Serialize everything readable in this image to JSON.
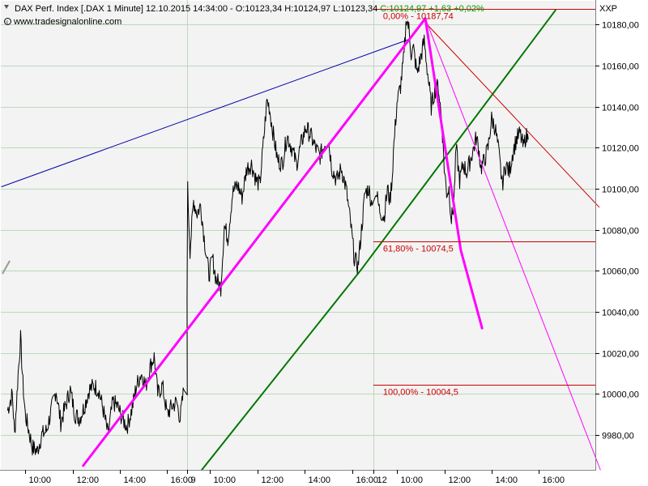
{
  "header": {
    "instrument": "DAX Perf. Index [.DAX",
    "interval": "1 Minute]",
    "datetime": "12.10.2015 14:34:00",
    "ohl": "- O:10123,34 H:10124,97 L:10123,34",
    "close_change": "C:10124,97 +1,63 +0,02%",
    "source": "www.tradesignalonline.com",
    "axis_code": "XXP"
  },
  "colors": {
    "background": "#f3f3f3",
    "grid": "#bcd8bc",
    "price": "#000000",
    "pink": "#ff00ff",
    "green": "#007700",
    "blue": "#0000aa",
    "fib": "#cc0000",
    "close_change": "#009900"
  },
  "chart_data": {
    "type": "line",
    "title": "",
    "xlabel": "",
    "ylabel": "",
    "ylim": [
      9963,
      10192
    ],
    "x_ticks": [
      {
        "label": "10:00",
        "x": 1
      },
      {
        "label": "12:00",
        "x": 3
      },
      {
        "label": "14:00",
        "x": 5
      },
      {
        "label": "16:00",
        "x": 7
      },
      {
        "label": "9",
        "x": 7.85
      },
      {
        "label": "10:00",
        "x": 8.85
      },
      {
        "label": "12:00",
        "x": 10.85
      },
      {
        "label": "14:00",
        "x": 12.85
      },
      {
        "label": "16:00",
        "x": 14.85
      },
      {
        "label": "12",
        "x": 15.75
      },
      {
        "label": "10:00",
        "x": 16.75
      },
      {
        "label": "12:00",
        "x": 18.75
      },
      {
        "label": "14:00",
        "x": 20.75
      },
      {
        "label": "16:00",
        "x": 22.75
      }
    ],
    "y_ticks": [
      9980,
      10000,
      10020,
      10040,
      10060,
      10080,
      10100,
      10120,
      10140,
      10160,
      10180
    ],
    "y_tick_labels": [
      "9980,00",
      "10000,00",
      "10020,00",
      "10040,00",
      "10060,00",
      "10080,00",
      "10100,00",
      "10120,00",
      "10140,00",
      "10160,00",
      "10180,00"
    ],
    "series": [
      {
        "values": [
          [
            0.25,
            9992
          ],
          [
            0.45,
            10000
          ],
          [
            0.55,
            9980
          ],
          [
            0.7,
            10010
          ],
          [
            0.8,
            10027
          ],
          [
            0.9,
            10005
          ],
          [
            1.0,
            9990
          ],
          [
            1.15,
            9982
          ],
          [
            1.3,
            9974
          ],
          [
            1.5,
            9972
          ],
          [
            1.7,
            9980
          ],
          [
            1.9,
            9982
          ],
          [
            2.1,
            9992
          ],
          [
            2.3,
            10002
          ],
          [
            2.5,
            9986
          ],
          [
            2.7,
            9994
          ],
          [
            2.9,
            10002
          ],
          [
            3.1,
            9990
          ],
          [
            3.3,
            9988
          ],
          [
            3.5,
            9994
          ],
          [
            3.7,
            10002
          ],
          [
            3.9,
            10004
          ],
          [
            4.1,
            10002
          ],
          [
            4.3,
            9992
          ],
          [
            4.5,
            9980
          ],
          [
            4.7,
            9996
          ],
          [
            4.9,
            9994
          ],
          [
            5.1,
            9988
          ],
          [
            5.3,
            9984
          ],
          [
            5.5,
            9992
          ],
          [
            5.7,
            10004
          ],
          [
            5.9,
            10010
          ],
          [
            6.1,
            10004
          ],
          [
            6.3,
            10014
          ],
          [
            6.45,
            10018
          ],
          [
            6.6,
            10000
          ],
          [
            6.8,
            10004
          ],
          [
            7.0,
            9990
          ],
          [
            7.2,
            9994
          ],
          [
            7.4,
            9996
          ],
          [
            7.55,
            9988
          ],
          [
            7.7,
            10002
          ],
          [
            7.85,
            10000
          ],
          [
            7.9,
            10100
          ],
          [
            8.0,
            10070
          ],
          [
            8.15,
            10094
          ],
          [
            8.3,
            10088
          ],
          [
            8.45,
            10092
          ],
          [
            8.6,
            10076
          ],
          [
            8.8,
            10058
          ],
          [
            8.95,
            10066
          ],
          [
            9.1,
            10056
          ],
          [
            9.3,
            10052
          ],
          [
            9.45,
            10082
          ],
          [
            9.6,
            10076
          ],
          [
            9.8,
            10098
          ],
          [
            10.0,
            10102
          ],
          [
            10.2,
            10096
          ],
          [
            10.4,
            10110
          ],
          [
            10.6,
            10112
          ],
          [
            10.8,
            10104
          ],
          [
            10.95,
            10102
          ],
          [
            11.1,
            10122
          ],
          [
            11.25,
            10143
          ],
          [
            11.35,
            10140
          ],
          [
            11.5,
            10128
          ],
          [
            11.7,
            10114
          ],
          [
            11.9,
            10112
          ],
          [
            12.1,
            10126
          ],
          [
            12.3,
            10120
          ],
          [
            12.5,
            10112
          ],
          [
            12.7,
            10122
          ],
          [
            12.9,
            10130
          ],
          [
            13.1,
            10126
          ],
          [
            13.3,
            10120
          ],
          [
            13.5,
            10116
          ],
          [
            13.7,
            10122
          ],
          [
            13.85,
            10124
          ],
          [
            14.0,
            10110
          ],
          [
            14.2,
            10104
          ],
          [
            14.4,
            10110
          ],
          [
            14.6,
            10100
          ],
          [
            14.8,
            10082
          ],
          [
            14.95,
            10066
          ],
          [
            15.1,
            10062
          ],
          [
            15.25,
            10080
          ],
          [
            15.4,
            10098
          ],
          [
            15.55,
            10100
          ],
          [
            15.7,
            10092
          ],
          [
            15.85,
            10100
          ],
          [
            16.0,
            10090
          ],
          [
            16.2,
            10086
          ],
          [
            16.35,
            10100
          ],
          [
            16.45,
            10094
          ],
          [
            16.55,
            10106
          ],
          [
            16.6,
            10118
          ],
          [
            16.75,
            10142
          ],
          [
            16.9,
            10150
          ],
          [
            17.05,
            10165
          ],
          [
            17.15,
            10184
          ],
          [
            17.25,
            10178
          ],
          [
            17.35,
            10166
          ],
          [
            17.45,
            10168
          ],
          [
            17.6,
            10156
          ],
          [
            17.75,
            10164
          ],
          [
            17.9,
            10172
          ],
          [
            18.05,
            10156
          ],
          [
            18.2,
            10140
          ],
          [
            18.35,
            10148
          ],
          [
            18.5,
            10150
          ],
          [
            18.65,
            10132
          ],
          [
            18.75,
            10110
          ],
          [
            18.85,
            10098
          ],
          [
            18.95,
            10100
          ],
          [
            19.05,
            10085
          ],
          [
            19.15,
            10092
          ],
          [
            19.25,
            10120
          ],
          [
            19.4,
            10104
          ],
          [
            19.55,
            10112
          ],
          [
            19.7,
            10108
          ],
          [
            19.85,
            10114
          ],
          [
            20.0,
            10120
          ],
          [
            20.1,
            10125
          ],
          [
            20.2,
            10120
          ],
          [
            20.3,
            10110
          ],
          [
            20.45,
            10114
          ],
          [
            20.6,
            10120
          ],
          [
            20.75,
            10134
          ],
          [
            20.9,
            10130
          ],
          [
            21.05,
            10118
          ],
          [
            21.2,
            10102
          ],
          [
            21.35,
            10112
          ],
          [
            21.5,
            10108
          ],
          [
            21.65,
            10118
          ],
          [
            21.8,
            10124
          ],
          [
            21.95,
            10127
          ],
          [
            22.1,
            10120
          ],
          [
            22.2,
            10126
          ],
          [
            22.3,
            10124
          ]
        ]
      }
    ],
    "fibonacci": [
      {
        "label": "0,00% - 10187,74",
        "value": 10187.74,
        "x_start": 15.75,
        "x_end": 25.3
      },
      {
        "label": "61,80% - 10074,5",
        "value": 10074.5,
        "x_start": 15.75,
        "x_end": 25.3
      },
      {
        "label": "100,00% - 10004,5",
        "value": 10004.5,
        "x_start": 15.75,
        "x_end": 25.3
      }
    ],
    "trendlines": [
      {
        "color": "pink",
        "width": 3,
        "points": [
          [
            3.45,
            9965
          ],
          [
            17.95,
            10183
          ]
        ]
      },
      {
        "color": "pink",
        "width": 3,
        "points": [
          [
            17.95,
            10183
          ],
          [
            19.45,
            10070
          ],
          [
            20.35,
            10032
          ]
        ]
      },
      {
        "color": "pink",
        "width": 1,
        "points": [
          [
            17.95,
            10183
          ],
          [
            25.35,
            9963
          ]
        ]
      },
      {
        "color": "green",
        "width": 2,
        "points": [
          [
            8.5,
            9963
          ],
          [
            15.2,
            10060
          ],
          [
            23.45,
            10187
          ]
        ]
      },
      {
        "color": "blue",
        "width": 1,
        "points": [
          [
            0.0,
            10101
          ],
          [
            17.3,
            10173
          ]
        ]
      },
      {
        "color": "fib",
        "width": 1,
        "points": [
          [
            17.95,
            10181
          ],
          [
            25.3,
            10091
          ]
        ]
      }
    ],
    "session_separators": [
      7.85,
      15.75
    ],
    "grid": true,
    "legend": "none"
  }
}
